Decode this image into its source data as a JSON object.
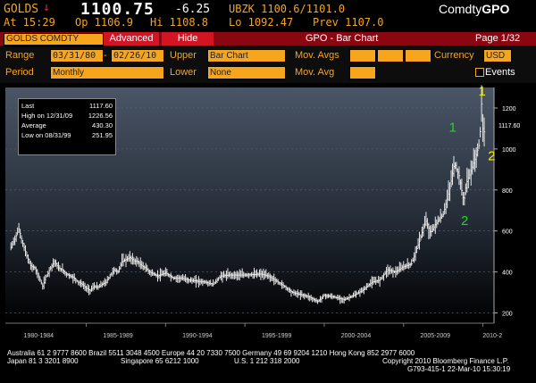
{
  "header": {
    "ticker": "GOLDS",
    "arrow": "↓",
    "price": "1100.75",
    "change": "-6.25",
    "quote": "UBZK 1100.6/1101.0",
    "brand_prefix": "Comdty",
    "brand_suffix": "GPO",
    "time_label": "At 15:29",
    "open": "Op 1106.9",
    "high": "Hi 1108.8",
    "low": "Lo 1092.47",
    "prev": "Prev 1107.0"
  },
  "toolbar": {
    "security_field": "GOLDS COMDTY",
    "advanced_label": "Advanced",
    "hide_label": "Hide",
    "title": "GPO - Bar Chart",
    "page": "Page 1/32"
  },
  "controls": {
    "range_label": "Range",
    "range_start": "03/31/80",
    "range_sep": "-",
    "range_end": "02/26/10",
    "upper_label": "Upper",
    "upper_value": "Bar Chart",
    "mov_avgs_label": "Mov. Avgs",
    "currency_label": "Currency",
    "currency_value": "USD",
    "period_label": "Period",
    "period_value": "Monthly",
    "lower_label": "Lower",
    "lower_value": "None",
    "mov_avg_label": "Mov. Avg",
    "events_label": "Events"
  },
  "stats": [
    {
      "label": "Last",
      "value": "1117.60"
    },
    {
      "label": "High on 12/31/09",
      "value": "1226.56"
    },
    {
      "label": "Average",
      "value": "430.30"
    },
    {
      "label": "Low on 08/31/99",
      "value": "251.95"
    }
  ],
  "chart_data": {
    "type": "line",
    "ylim": [
      150,
      1300
    ],
    "yticks": [
      "1200",
      "1000",
      "800",
      "600",
      "400",
      "200"
    ],
    "last_label": "1117.60",
    "last_value": 1117.6,
    "x_labels": [
      "1980-1984",
      "1985-1989",
      "1990-1994",
      "1995-1999",
      "2000-2004",
      "2005-2009",
      "2010-2"
    ],
    "series": [
      {
        "x": [
          1980.25,
          1980.5,
          1980.75,
          1981.0,
          1981.25,
          1981.5,
          1981.75,
          1982.0,
          1982.25,
          1982.5,
          1982.75,
          1983.0,
          1983.25,
          1983.5,
          1983.75,
          1984.0,
          1984.25,
          1984.5,
          1984.75,
          1985.0,
          1985.25,
          1985.5,
          1985.75,
          1986.0,
          1986.25,
          1986.5,
          1986.75,
          1987.0,
          1987.25,
          1987.5,
          1987.75,
          1988.0,
          1988.25,
          1988.5,
          1988.75,
          1989.0,
          1989.5,
          1990.0,
          1990.5,
          1991.0,
          1991.5,
          1992.0,
          1992.5,
          1993.0,
          1993.5,
          1994.0,
          1994.5,
          1995.0,
          1995.5,
          1996.0,
          1996.5,
          1997.0,
          1997.5,
          1998.0,
          1998.5,
          1999.0,
          1999.6,
          2000.0,
          2000.5,
          2001.0,
          2001.3,
          2001.7,
          2002.0,
          2002.5,
          2003.0,
          2003.5,
          2004.0,
          2004.5,
          2005.0,
          2005.5,
          2006.0,
          2006.4,
          2006.7,
          2007.0,
          2007.5,
          2007.9,
          2008.2,
          2008.5,
          2008.8,
          2008.95,
          2009.2,
          2009.5,
          2009.8,
          2009.92,
          2010.0,
          2010.1,
          2010.16
        ],
        "y": [
          520,
          560,
          610,
          540,
          480,
          430,
          420,
          380,
          330,
          380,
          420,
          450,
          420,
          410,
          390,
          380,
          370,
          350,
          340,
          320,
          310,
          330,
          325,
          340,
          350,
          380,
          410,
          400,
          450,
          460,
          470,
          455,
          450,
          430,
          420,
          400,
          380,
          395,
          370,
          370,
          360,
          355,
          350,
          340,
          380,
          385,
          385,
          385,
          387,
          390,
          380,
          355,
          330,
          300,
          290,
          280,
          255,
          285,
          280,
          270,
          265,
          280,
          290,
          315,
          350,
          360,
          410,
          400,
          425,
          440,
          550,
          650,
          590,
          630,
          680,
          800,
          930,
          870,
          740,
          830,
          880,
          950,
          1030,
          1226,
          1100,
          1080,
          1117
        ]
      }
    ],
    "annotations": [
      {
        "text": "1",
        "x": 2009.95,
        "y": 1260,
        "color": "#f5e900"
      },
      {
        "text": "1",
        "x": 2008.1,
        "y": 1085,
        "color": "#25d425"
      },
      {
        "text": "2",
        "x": 2010.55,
        "y": 945,
        "color": "#f5e900"
      },
      {
        "text": "2",
        "x": 2008.85,
        "y": 630,
        "color": "#25d425"
      }
    ]
  },
  "footer": {
    "line1": "Australia 61 2 9777 8600 Brazil 5511 3048 4500 Europe 44 20 7330 7500 Germany 49 69 9204 1210 Hong Kong 852 2977 6000",
    "line2_left": "Japan 81 3 3201 8900",
    "line2_mid": "Singapore 65 6212 1000",
    "line2_mid2": "U.S. 1 212 318 2000",
    "line2_right": "Copyright 2010 Bloomberg Finance L.P.",
    "line3_right": "G793-415-1 22-Mar-10 15:30:19"
  }
}
